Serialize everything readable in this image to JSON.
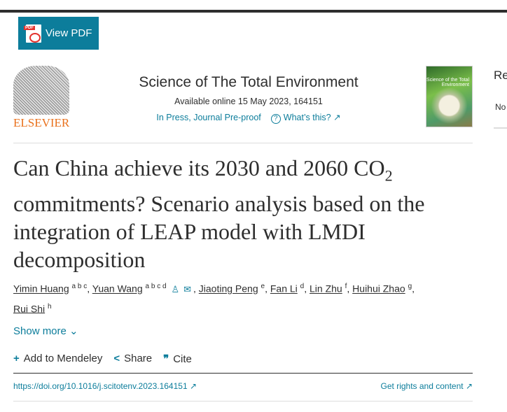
{
  "toolbar": {
    "view_pdf": "View PDF"
  },
  "publisher": {
    "logo_text": "ELSEVIER"
  },
  "journal": {
    "title": "Science of The Total Environment",
    "available": "Available online 15 May 2023, 164151",
    "status": "In Press, Journal Pre-proof",
    "whats_this": "What’s this? ↗",
    "cover_text": "Science of the Total Environment"
  },
  "side": {
    "heading": "Re",
    "text": "No"
  },
  "article": {
    "title_pre": "Can China achieve its 2030 and 2060 CO",
    "title_sub": "2",
    "title_post": " commitments? Scenario analysis based on the integration of LEAP model with LMDI decomposition"
  },
  "authors": [
    {
      "name": "Yimin Huang",
      "sup": "a b c"
    },
    {
      "name": "Yuan Wang",
      "sup": "a b c d"
    },
    {
      "name": "Jiaoting Peng",
      "sup": "e"
    },
    {
      "name": "Fan Li",
      "sup": "d"
    },
    {
      "name": "Lin Zhu",
      "sup": "f"
    },
    {
      "name": "Huihui Zhao",
      "sup": "g"
    },
    {
      "name": "Rui Shi",
      "sup": "h"
    }
  ],
  "show_more": "Show more",
  "actions": {
    "mendeley": "Add to Mendeley",
    "share": "Share",
    "cite": "Cite"
  },
  "doi": "https://doi.org/10.1016/j.scitotenv.2023.164151 ↗",
  "rights": "Get rights and content ↗",
  "colors": {
    "accent": "#0c7d9b",
    "elsevier": "#e9711c"
  }
}
